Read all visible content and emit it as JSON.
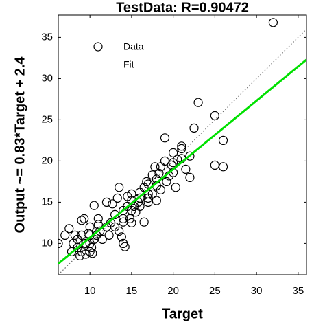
{
  "chart_data": {
    "type": "scatter",
    "title": "TestData: R=0.90472",
    "x_label": "Target",
    "y_label": "Output ~= 0.83*Target + 2.4",
    "xlim": [
      6.2,
      36
    ],
    "ylim": [
      6.2,
      37.7
    ],
    "xticks": [
      10,
      15,
      20,
      25,
      30,
      35
    ],
    "yticks": [
      10,
      15,
      20,
      25,
      30,
      35
    ],
    "identity_line": true,
    "legend": "upper left",
    "series": [
      {
        "name": "Data",
        "color": "#000000",
        "marker": "open-circle",
        "x": [
          6.2,
          7,
          7.5,
          7.8,
          8,
          8.2,
          8.5,
          8.5,
          8.8,
          9,
          9,
          9,
          9.3,
          9.5,
          9.5,
          9.8,
          10,
          10,
          10,
          10,
          10.2,
          10.3,
          10.5,
          10.5,
          10.8,
          11,
          11,
          11.2,
          11.5,
          12,
          12,
          12.3,
          12.5,
          12.7,
          13,
          13,
          13.3,
          13.5,
          13.5,
          13.8,
          14,
          14,
          14,
          14,
          14.2,
          14.5,
          14.5,
          14.8,
          15,
          15,
          15,
          15,
          15.3,
          15.5,
          15.8,
          16,
          16,
          16,
          16.5,
          16.5,
          16.8,
          17,
          17,
          17,
          17,
          17.5,
          17.5,
          17.8,
          18,
          18,
          18,
          18.3,
          18.5,
          18.5,
          19,
          19,
          19.2,
          19.5,
          19.8,
          20,
          20,
          20,
          20.3,
          20.5,
          21,
          21,
          21,
          21.5,
          22,
          22,
          22.5,
          23,
          25,
          25,
          26,
          26,
          32
        ],
        "y": [
          10,
          11,
          11.8,
          9,
          10,
          11,
          9.5,
          10.5,
          8.5,
          9,
          11,
          12.8,
          13,
          10,
          8.7,
          11.2,
          9,
          10,
          11,
          12,
          9.5,
          8.8,
          10.5,
          14.6,
          11,
          12.3,
          13,
          11.5,
          10.5,
          12,
          15,
          11,
          12.5,
          14.8,
          13.5,
          12,
          15.5,
          16.8,
          11.5,
          10.8,
          14,
          12.6,
          13,
          10,
          9.6,
          15.7,
          14.5,
          13,
          14,
          15.2,
          16,
          12.5,
          14.5,
          13.8,
          15,
          14.5,
          16.2,
          15.5,
          12.6,
          16.8,
          17.5,
          15,
          16,
          17.2,
          15.5,
          18.3,
          16,
          19.3,
          17,
          15.2,
          17.8,
          18.5,
          16.5,
          19.3,
          20,
          22.8,
          17.5,
          18.2,
          19.5,
          21,
          18.6,
          19.8,
          16.8,
          20.2,
          21.5,
          21.8,
          20.3,
          19,
          18,
          20.6,
          24,
          27.1,
          25.5,
          19.5,
          22.5,
          19.3,
          36.8
        ]
      },
      {
        "name": "Fit",
        "color": "#00e000",
        "marker": "line",
        "x": [
          6.2,
          36
        ],
        "y": [
          7.55,
          32.3
        ]
      }
    ]
  }
}
